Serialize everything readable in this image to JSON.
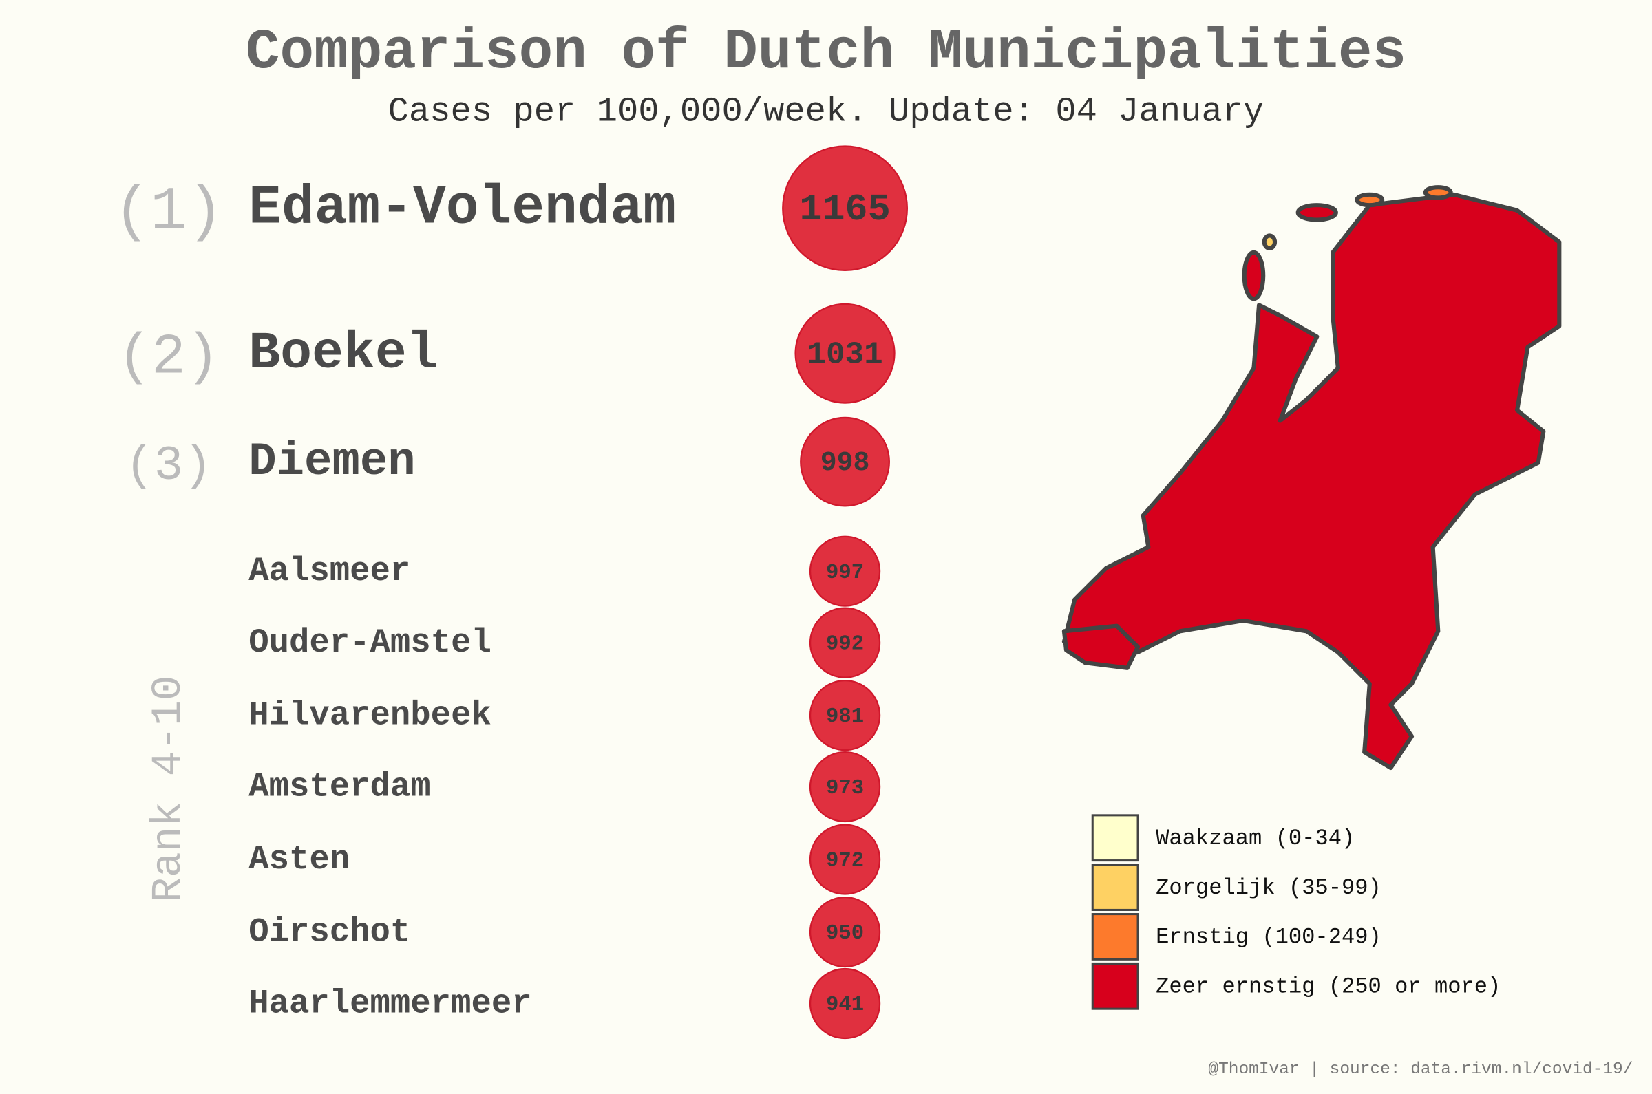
{
  "chart_data": {
    "type": "ranking",
    "title": "Comparison of Dutch Municipalities",
    "subtitle": "Cases per 100,000/week. Update: 04 January",
    "categories": [
      "Edam-Volendam",
      "Boekel",
      "Diemen",
      "Aalsmeer",
      "Ouder-Amstel",
      "Hilvarenbeek",
      "Amsterdam",
      "Asten",
      "Oirschot",
      "Haarlemmermeer"
    ],
    "ranks": [
      "(1)",
      "(2)",
      "(3)"
    ],
    "group_label": "Rank 4-10",
    "values": [
      1165,
      1031,
      998,
      997,
      992,
      981,
      973,
      972,
      950,
      941
    ],
    "color": "#e0303f",
    "legend": [
      {
        "label": "Waakzaam (0-34)",
        "color": "#ffffcc"
      },
      {
        "label": "Zorgelijk (35-99)",
        "color": "#fed163"
      },
      {
        "label": "Ernstig (100-249)",
        "color": "#fd7a2c"
      },
      {
        "label": "Zeer ernstig (250 or more)",
        "color": "#d7001c"
      }
    ],
    "source": "@ThomIvar | source: data.rivm.nl/covid-19/"
  }
}
